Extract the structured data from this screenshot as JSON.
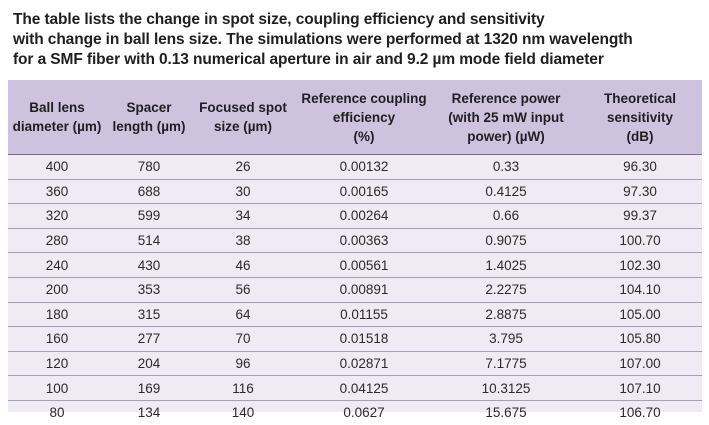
{
  "caption": [
    "The table lists the change in spot size, coupling efficiency and sensitivity",
    "with change in ball lens size. The simulations were performed at 1320 nm wavelength",
    "for a SMF fiber with 0.13 numerical aperture in air and 9.2 µm mode field diameter"
  ],
  "table": {
    "headers": [
      [
        "Ball lens",
        "diameter (µm)"
      ],
      [
        "Spacer",
        "length (µm)"
      ],
      [
        "Focused spot",
        "size (µm)"
      ],
      [
        "Reference coupling",
        "efficiency",
        "(%)"
      ],
      [
        "Reference power",
        "(with 25 mW input",
        "power) (µW)"
      ],
      [
        "Theoretical",
        "sensitivity",
        "(dB)"
      ]
    ],
    "rows": [
      [
        "400",
        "780",
        "26",
        "0.00132",
        "0.33",
        "96.30"
      ],
      [
        "360",
        "688",
        "30",
        "0.00165",
        "0.4125",
        "97.30"
      ],
      [
        "320",
        "599",
        "34",
        "0.00264",
        "0.66",
        "99.37"
      ],
      [
        "280",
        "514",
        "38",
        "0.00363",
        "0.9075",
        "100.70"
      ],
      [
        "240",
        "430",
        "46",
        "0.00561",
        "1.4025",
        "102.30"
      ],
      [
        "200",
        "353",
        "56",
        "0.00891",
        "2.2275",
        "104.10"
      ],
      [
        "180",
        "315",
        "64",
        "0.01155",
        "2.8875",
        "105.00"
      ],
      [
        "160",
        "277",
        "70",
        "0.01518",
        "3.795",
        "105.80"
      ],
      [
        "120",
        "204",
        "96",
        "0.02871",
        "7.1775",
        "107.00"
      ],
      [
        "100",
        "169",
        "116",
        "0.04125",
        "10.3125",
        "107.10"
      ],
      [
        "80",
        "134",
        "140",
        "0.0627",
        "15.675",
        "106.70"
      ]
    ]
  },
  "colors": {
    "header_bg": "#cfc2df",
    "body_bg": "#efeaf4",
    "rule": "#a99bbd"
  }
}
